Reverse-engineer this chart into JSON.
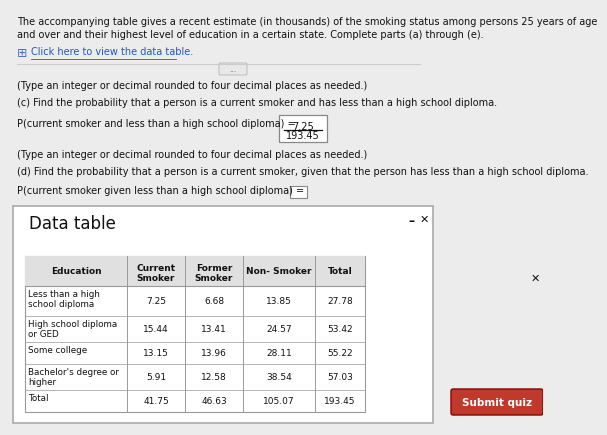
{
  "title_line1": "The accompanying table gives a recent estimate (in thousands) of the smoking status among persons 25 years of age",
  "title_line2": "and over and their highest level of education in a certain state. Complete parts (a) through (e).",
  "click_text": "Click here to view the data table.",
  "type_note1": "(Type an integer or decimal rounded to four decimal places as needed.)",
  "part_c": "(c) Find the probability that a person is a current smoker and has less than a high school diploma.",
  "prob_c_label": "P(current smoker and less than a high school diploma) =",
  "prob_c_numerator": "7.25",
  "prob_c_denominator": "193.45",
  "type_note2": "(Type an integer or decimal rounded to four decimal places as needed.)",
  "part_d": "(d) Find the probability that a person is a current smoker, given that the person has less than a high school diploma.",
  "prob_d_label": "P(current smoker given less than a high school diploma) =",
  "data_table_title": "Data table",
  "col_headers_line1": [
    "",
    "Current",
    "Former",
    "",
    ""
  ],
  "col_headers_line2": [
    "Education",
    "Smoker",
    "Smoker",
    "Non- Smoker",
    "Total"
  ],
  "rows": [
    [
      "Less than a high\nschool diploma",
      "7.25",
      "6.68",
      "13.85",
      "27.78"
    ],
    [
      "High school diploma\nor GED",
      "15.44",
      "13.41",
      "24.57",
      "53.42"
    ],
    [
      "Some college",
      "13.15",
      "13.96",
      "28.11",
      "55.22"
    ],
    [
      "Bachelor's degree or\nhigher",
      "5.91",
      "12.58",
      "38.54",
      "57.03"
    ],
    [
      "Total",
      "41.75",
      "46.63",
      "105.07",
      "193.45"
    ]
  ],
  "bg_color": "#ececec",
  "white": "#ffffff",
  "header_bg": "#e0e0e0",
  "submit_color": "#c0392b",
  "text_color": "#111111",
  "blue_link": "#2255cc",
  "icon_color": "#4472c4",
  "separator_color": "#cccccc",
  "panel_border": "#aaaaaa",
  "table_border": "#999999"
}
